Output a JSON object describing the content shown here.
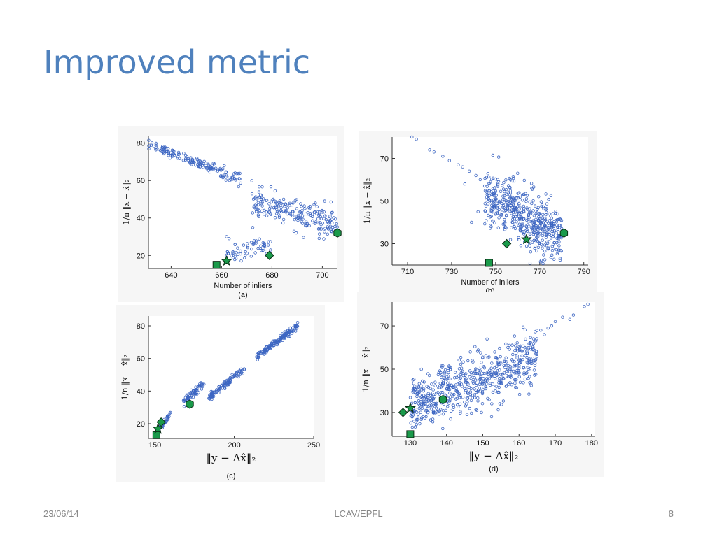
{
  "slide": {
    "title": "Improved metric",
    "footer_date": "23/06/14",
    "footer_center": "LCAV/EPFL",
    "page_number": "8"
  },
  "colors": {
    "title": "#4f81bd",
    "scatter_point": "#3d66c2",
    "marker_fill": "#1a9a4a",
    "marker_stroke": "#0b2d14"
  },
  "chart_data": [
    {
      "type": "scatter",
      "caption": "(a)",
      "xlabel": "Number of inliers",
      "ylabel": "1/n ||x − x̂||2",
      "xlim": [
        631,
        706
      ],
      "ylim": [
        13,
        84
      ],
      "xticks": [
        640,
        660,
        680,
        700
      ],
      "yticks": [
        20,
        40,
        60,
        80
      ],
      "grid": false,
      "clusters": [
        {
          "x": [
            631,
            656
          ],
          "y": [
            79,
            67
          ],
          "spread_y": 1.2,
          "count": 120
        },
        {
          "x": [
            656,
            668
          ],
          "y": [
            67,
            60
          ],
          "spread_y": 1.8,
          "count": 45
        },
        {
          "x": [
            672,
            706
          ],
          "y": [
            49,
            36
          ],
          "spread_y": 4.0,
          "count": 220
        },
        {
          "x": [
            662,
            680
          ],
          "y": [
            20,
            26
          ],
          "spread_y": 2.0,
          "count": 60
        }
      ],
      "scatter_points": [
        {
          "x": 662,
          "y": 30
        },
        {
          "x": 663,
          "y": 29
        }
      ],
      "markers": [
        {
          "shape": "square",
          "x": 658,
          "y": 15
        },
        {
          "shape": "star",
          "x": 662,
          "y": 17
        },
        {
          "shape": "diamond",
          "x": 679,
          "y": 20
        },
        {
          "shape": "hexagon",
          "x": 706,
          "y": 32
        }
      ]
    },
    {
      "type": "scatter",
      "caption": "(b)",
      "xlabel": "Number of inliers",
      "ylabel": "1/n ||x − x̂||2",
      "xlim": [
        703,
        792
      ],
      "ylim": [
        20,
        80
      ],
      "xticks": [
        710,
        730,
        750,
        770,
        790
      ],
      "yticks": [
        30,
        50,
        70
      ],
      "grid": false,
      "clusters": [
        {
          "x": [
            745,
            780
          ],
          "y": [
            52,
            33
          ],
          "spread_y": 7.0,
          "count": 520
        }
      ],
      "scatter_points": [
        {
          "x": 712,
          "y": 80
        },
        {
          "x": 714,
          "y": 79
        },
        {
          "x": 720,
          "y": 74
        },
        {
          "x": 722,
          "y": 73
        },
        {
          "x": 726,
          "y": 71
        },
        {
          "x": 729,
          "y": 69
        },
        {
          "x": 733,
          "y": 67
        },
        {
          "x": 735,
          "y": 66
        },
        {
          "x": 738,
          "y": 64
        },
        {
          "x": 741,
          "y": 62
        },
        {
          "x": 743,
          "y": 60
        },
        {
          "x": 736,
          "y": 58
        },
        {
          "x": 745,
          "y": 57
        },
        {
          "x": 760,
          "y": 63
        },
        {
          "x": 739,
          "y": 40
        },
        {
          "x": 742,
          "y": 45
        }
      ],
      "markers": [
        {
          "shape": "square",
          "x": 747,
          "y": 21
        },
        {
          "shape": "diamond",
          "x": 755,
          "y": 30
        },
        {
          "shape": "star",
          "x": 764,
          "y": 32
        },
        {
          "shape": "hexagon",
          "x": 781,
          "y": 35
        }
      ]
    },
    {
      "type": "scatter",
      "caption": "(c)",
      "xlabel": "||y − Ax̂||2",
      "ylabel": "1/n ||x − x̂||2",
      "xlim": [
        146,
        250
      ],
      "ylim": [
        11,
        86
      ],
      "xticks": [
        150,
        200,
        250
      ],
      "yticks": [
        20,
        40,
        60,
        80
      ],
      "grid": false,
      "clusters": [
        {
          "x": [
            152,
            160
          ],
          "y": [
            16,
            26
          ],
          "spread_y": 1.0,
          "count": 40
        },
        {
          "x": [
            168,
            181
          ],
          "y": [
            33,
            44
          ],
          "spread_y": 1.5,
          "count": 70
        },
        {
          "x": [
            184,
            198
          ],
          "y": [
            36,
            47
          ],
          "spread_y": 1.2,
          "count": 80
        },
        {
          "x": [
            198,
            207
          ],
          "y": [
            48,
            53
          ],
          "spread_y": 1.0,
          "count": 25
        },
        {
          "x": [
            214,
            240
          ],
          "y": [
            61,
            80
          ],
          "spread_y": 1.0,
          "count": 160
        }
      ],
      "scatter_points": [],
      "markers": [
        {
          "shape": "square",
          "x": 151,
          "y": 13
        },
        {
          "shape": "star",
          "x": 152,
          "y": 17
        },
        {
          "shape": "diamond",
          "x": 154,
          "y": 21
        },
        {
          "shape": "hexagon",
          "x": 172,
          "y": 32
        }
      ]
    },
    {
      "type": "scatter",
      "caption": "(d)",
      "xlabel": "||y − Ax̂||2",
      "ylabel": "1/n ||x − x̂||2",
      "xlim": [
        125,
        181
      ],
      "ylim": [
        19,
        81
      ],
      "xticks": [
        130,
        140,
        150,
        160,
        170,
        180
      ],
      "yticks": [
        30,
        50,
        70
      ],
      "grid": false,
      "clusters": [
        {
          "x": [
            130,
            165
          ],
          "y": [
            33,
            55
          ],
          "spread_y": 6.5,
          "count": 640
        }
      ],
      "scatter_points": [
        {
          "x": 166,
          "y": 68
        },
        {
          "x": 167,
          "y": 66
        },
        {
          "x": 169,
          "y": 70
        },
        {
          "x": 170,
          "y": 72
        },
        {
          "x": 172,
          "y": 74
        },
        {
          "x": 174,
          "y": 73
        },
        {
          "x": 175,
          "y": 75
        },
        {
          "x": 178,
          "y": 79
        },
        {
          "x": 179,
          "y": 80
        },
        {
          "x": 164,
          "y": 64
        },
        {
          "x": 163,
          "y": 62
        },
        {
          "x": 168,
          "y": 69
        }
      ],
      "markers": [
        {
          "shape": "square",
          "x": 130,
          "y": 20
        },
        {
          "shape": "diamond",
          "x": 128,
          "y": 30
        },
        {
          "shape": "star",
          "x": 130,
          "y": 32
        },
        {
          "shape": "hexagon",
          "x": 139,
          "y": 36
        }
      ]
    }
  ]
}
